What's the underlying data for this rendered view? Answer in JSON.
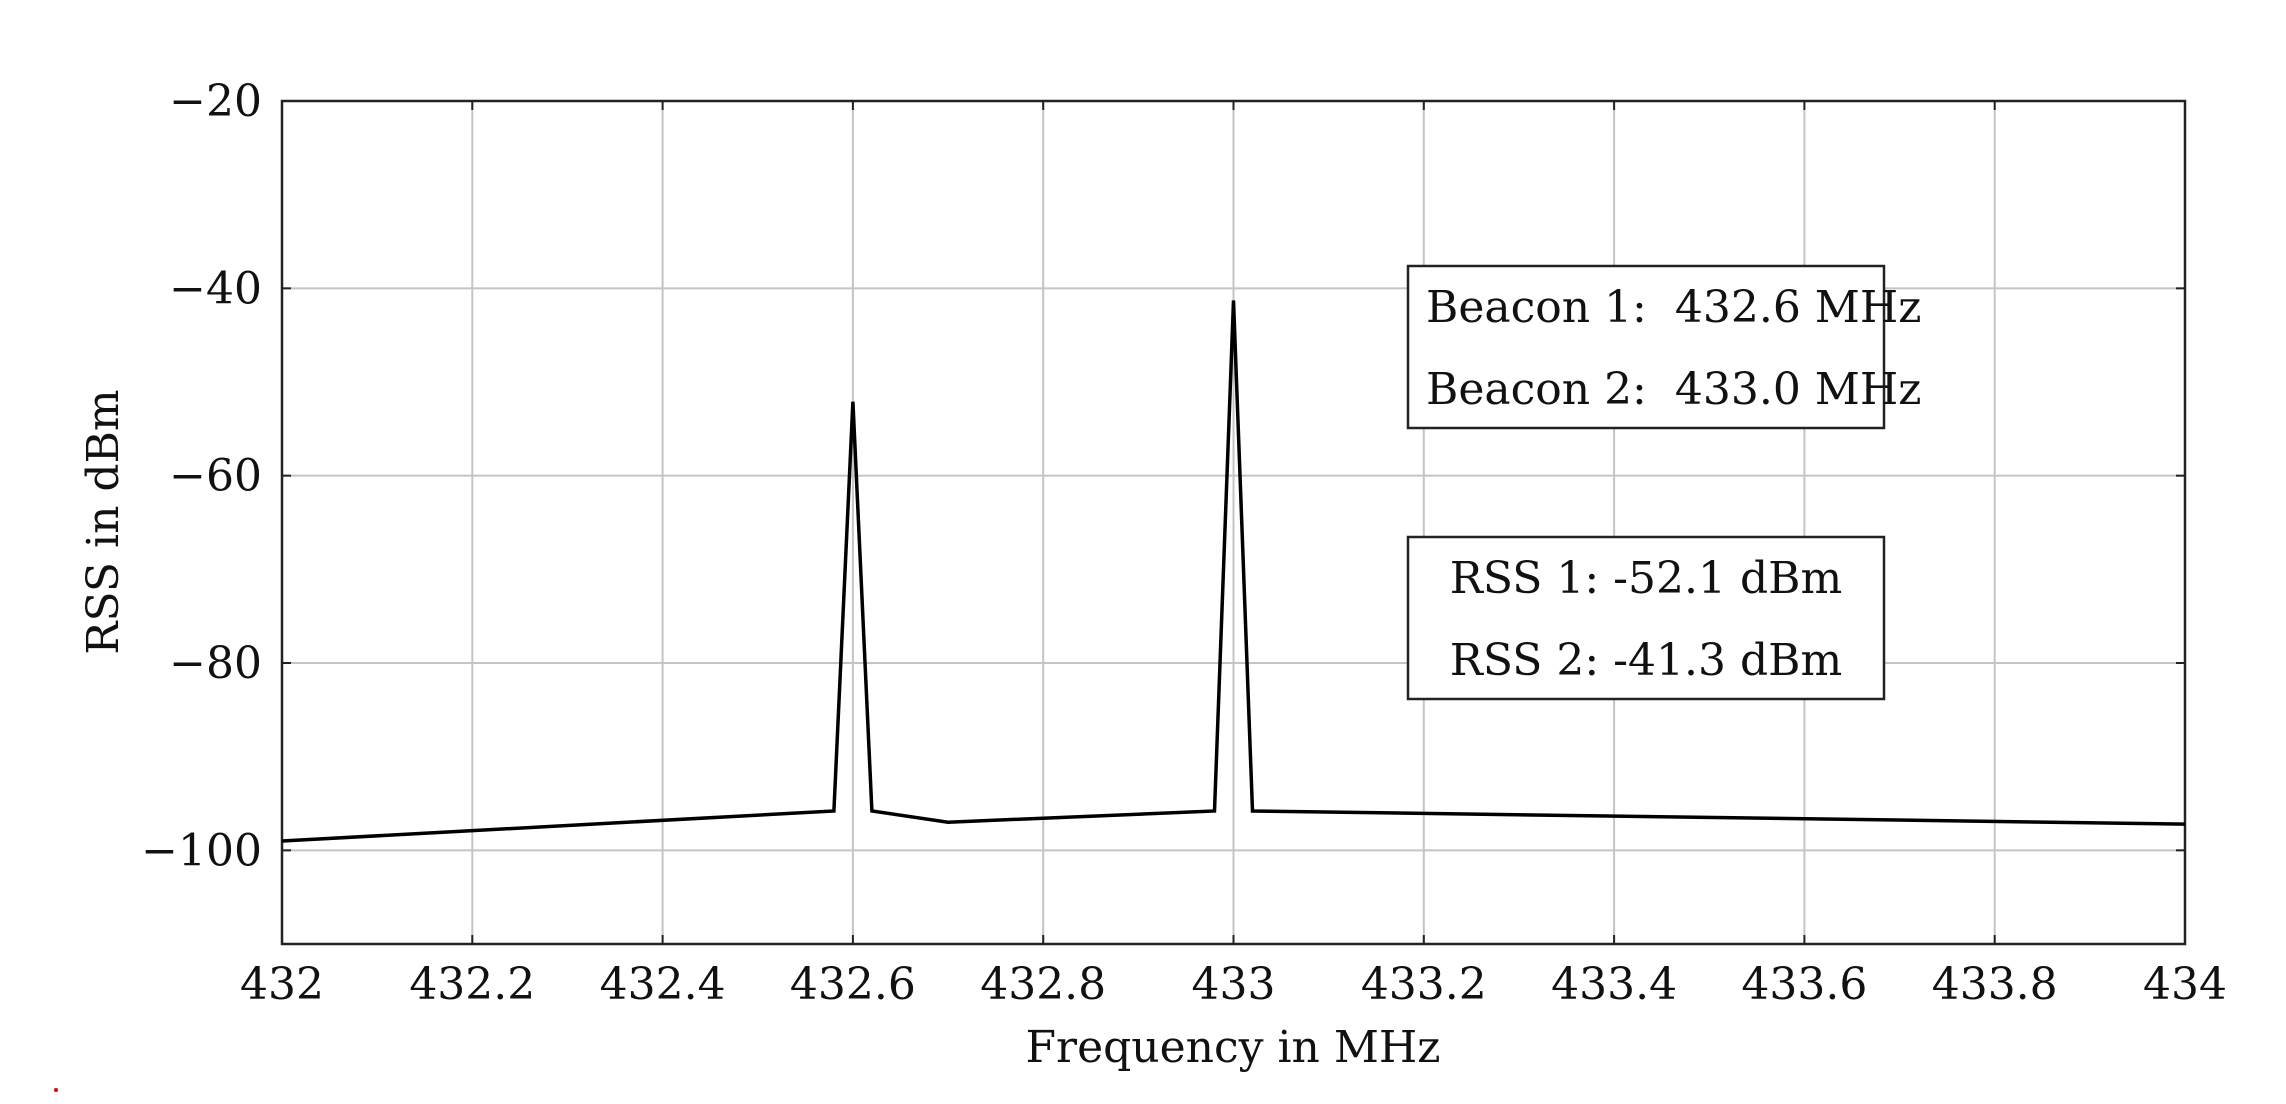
{
  "chart_data": {
    "type": "line",
    "title": "",
    "xlabel": "Frequency in MHz",
    "ylabel": "RSS in dBm",
    "xlim": [
      432,
      434
    ],
    "ylim": [
      -110,
      -20
    ],
    "x_ticks": [
      432,
      432.2,
      432.4,
      432.6,
      432.8,
      433,
      433.2,
      433.4,
      433.6,
      433.8,
      434
    ],
    "x_tick_labels": [
      "432",
      "432.2",
      "432.4",
      "432.6",
      "432.8",
      "433",
      "433.2",
      "433.4",
      "433.6",
      "433.8",
      "434"
    ],
    "y_ticks": [
      -100,
      -80,
      -60,
      -40,
      -20
    ],
    "y_tick_labels": [
      "−100",
      "−80",
      "−60",
      "−40",
      "−20"
    ],
    "grid": true,
    "series": [
      {
        "color": "#000000",
        "x": [
          432.0,
          432.58,
          432.6,
          432.62,
          432.7,
          432.98,
          433.0,
          433.02,
          434.0
        ],
        "y": [
          -99.0,
          -95.8,
          -52.1,
          -95.8,
          -97.0,
          -95.8,
          -41.3,
          -95.8,
          -97.2
        ]
      }
    ],
    "annotations": [
      {
        "lines": [
          "Beacon 1:  432.6 MHz",
          "Beacon 2:  433.0 MHz"
        ]
      },
      {
        "lines": [
          "RSS 1: -52.1 dBm",
          "RSS 2: -41.3 dBm"
        ]
      }
    ]
  }
}
